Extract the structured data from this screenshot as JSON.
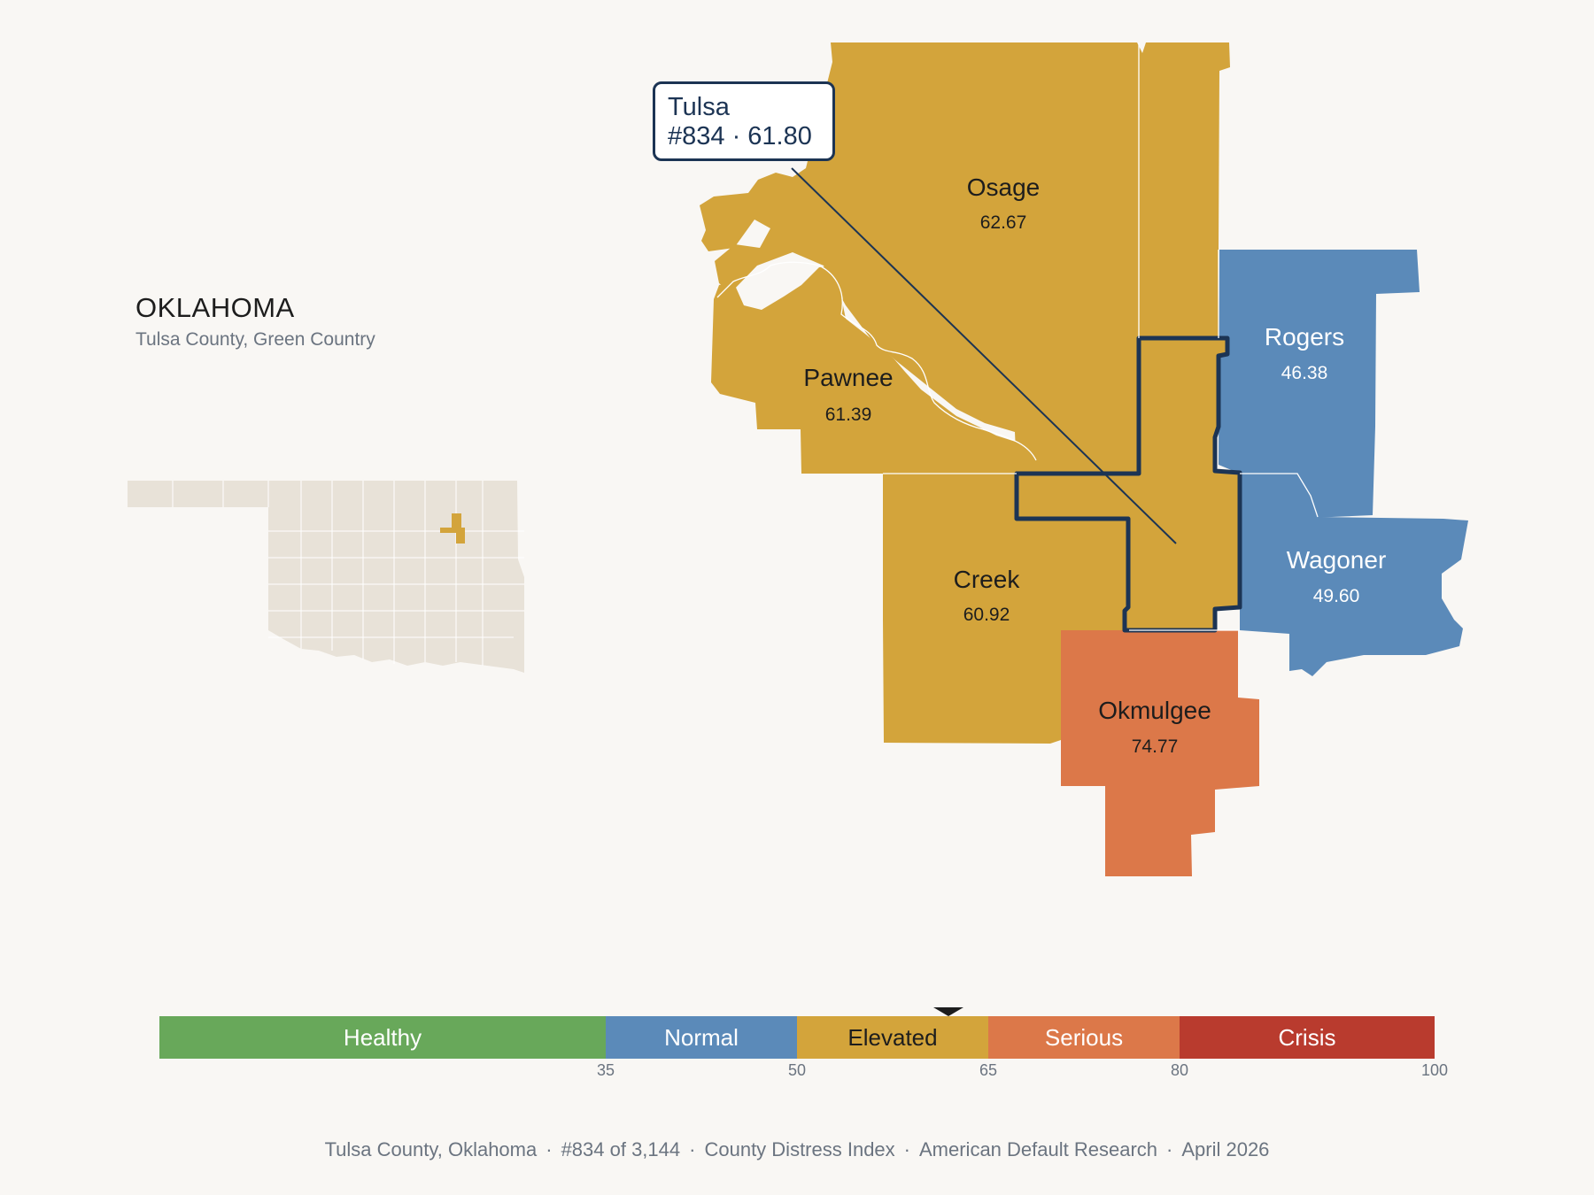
{
  "state": {
    "title": "OKLAHOMA",
    "subtitle": "Tulsa County, Green Country"
  },
  "colors": {
    "healthy": "#68a85a",
    "normal": "#5b8ab9",
    "elevated": "#d3a43b",
    "serious": "#dc7849",
    "crisis": "#b93b2e",
    "highlight_outline": "#1c3454",
    "inset_fill": "#e8e2d8"
  },
  "counties": [
    {
      "name": "Osage",
      "value": "62.67",
      "band": "elevated"
    },
    {
      "name": "Pawnee",
      "value": "61.39",
      "band": "elevated"
    },
    {
      "name": "Rogers",
      "value": "46.38",
      "band": "normal"
    },
    {
      "name": "Creek",
      "value": "60.92",
      "band": "elevated"
    },
    {
      "name": "Wagoner",
      "value": "49.60",
      "band": "normal"
    },
    {
      "name": "Okmulgee",
      "value": "74.77",
      "band": "serious"
    },
    {
      "name": "Tulsa",
      "value": "61.80",
      "band": "elevated"
    }
  ],
  "callout": {
    "name": "Tulsa",
    "detail": "#834 · 61.80"
  },
  "legend": {
    "segments": [
      {
        "label": "Healthy",
        "from": 0,
        "to": 35
      },
      {
        "label": "Normal",
        "from": 35,
        "to": 50
      },
      {
        "label": "Elevated",
        "from": 50,
        "to": 65
      },
      {
        "label": "Serious",
        "from": 65,
        "to": 80
      },
      {
        "label": "Crisis",
        "from": 80,
        "to": 100
      }
    ],
    "ticks": [
      "35",
      "50",
      "65",
      "80",
      "100"
    ],
    "marker_value": 61.8
  },
  "footer": {
    "county": "Tulsa County, Oklahoma",
    "rank": "#834 of 3,144",
    "index": "County Distress Index",
    "source": "American Default Research",
    "date": "April 2026",
    "separator": "·"
  }
}
